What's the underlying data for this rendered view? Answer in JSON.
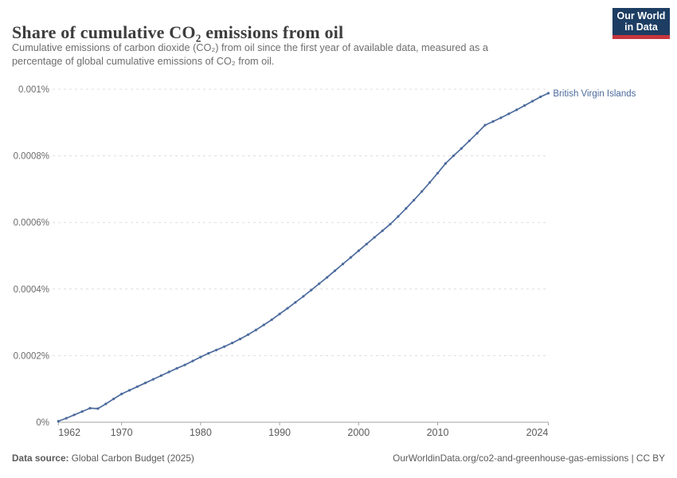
{
  "header": {
    "title": "Share of cumulative CO₂ emissions from oil",
    "subtitle_line1": "Cumulative emissions of carbon dioxide (CO₂) from oil since the first year of available data, measured as a",
    "subtitle_line2": "percentage of global cumulative emissions of CO₂ from oil.",
    "logo": {
      "line1": "Our World",
      "line2": "in Data",
      "bg_color": "#1d3d63",
      "accent_color": "#c7363f"
    }
  },
  "footer": {
    "source_label": "Data source:",
    "source_value": " Global Carbon Budget (2025)",
    "credit": "OurWorldinData.org/co2-and-greenhouse-gas-emissions | CC BY"
  },
  "chart_data": {
    "type": "line",
    "title": "Share of cumulative CO₂ emissions from oil",
    "xlabel": "",
    "ylabel": "",
    "y_unit": "%",
    "xlim": [
      1962,
      2024
    ],
    "ylim": [
      0,
      0.001
    ],
    "grid": "horizontal-dashed",
    "legend_position": "end-of-line-label",
    "line_color": "#4c6a9c",
    "axis_color": "#a3a3a3",
    "gridline_color": "#dddddd",
    "tick_label_color": "#6b6b6b",
    "x_ticks": [
      1962,
      1970,
      1980,
      1990,
      2000,
      2010,
      2024
    ],
    "y_ticks": [
      {
        "label": "0%",
        "value": 0
      },
      {
        "label": "0.0002%",
        "value": 0.0002
      },
      {
        "label": "0.0004%",
        "value": 0.0004
      },
      {
        "label": "0.0006%",
        "value": 0.0006
      },
      {
        "label": "0.0008%",
        "value": 0.0008
      },
      {
        "label": "0.001%",
        "value": 0.001
      }
    ],
    "series": [
      {
        "name": "British Virgin Islands",
        "x": [
          1962,
          1963,
          1964,
          1965,
          1966,
          1967,
          1968,
          1969,
          1970,
          1971,
          1972,
          1973,
          1974,
          1975,
          1976,
          1977,
          1978,
          1979,
          1980,
          1981,
          1982,
          1983,
          1984,
          1985,
          1986,
          1987,
          1988,
          1989,
          1990,
          1991,
          1992,
          1993,
          1994,
          1995,
          1996,
          1997,
          1998,
          1999,
          2000,
          2001,
          2002,
          2003,
          2004,
          2005,
          2006,
          2007,
          2008,
          2009,
          2010,
          2011,
          2012,
          2013,
          2014,
          2015,
          2016,
          2017,
          2018,
          2019,
          2020,
          2021,
          2022,
          2023,
          2024
        ],
        "y": [
          3e-06,
          1.2e-05,
          2.2e-05,
          3.2e-05,
          4.2e-05,
          4.1e-05,
          5.5e-05,
          7e-05,
          8.5e-05,
          9.6e-05,
          0.000107,
          0.000118,
          0.000129,
          0.00014,
          0.000151,
          0.000162,
          0.000172,
          0.000184,
          0.000196,
          0.000207,
          0.000217,
          0.000227,
          0.000238,
          0.00025,
          0.000263,
          0.000277,
          0.000292,
          0.000308,
          0.000325,
          0.000342,
          0.00036,
          0.000378,
          0.000397,
          0.000416,
          0.000435,
          0.000455,
          0.000475,
          0.000495,
          0.000515,
          0.000535,
          0.000555,
          0.000575,
          0.000595,
          0.000618,
          0.000642,
          0.000667,
          0.000693,
          0.00072,
          0.000748,
          0.000777,
          0.0008,
          0.000822,
          0.000845,
          0.000868,
          0.000892,
          0.000903,
          0.000914,
          0.000926,
          0.000938,
          0.000951,
          0.000964,
          0.000977,
          0.000988
        ]
      }
    ]
  }
}
